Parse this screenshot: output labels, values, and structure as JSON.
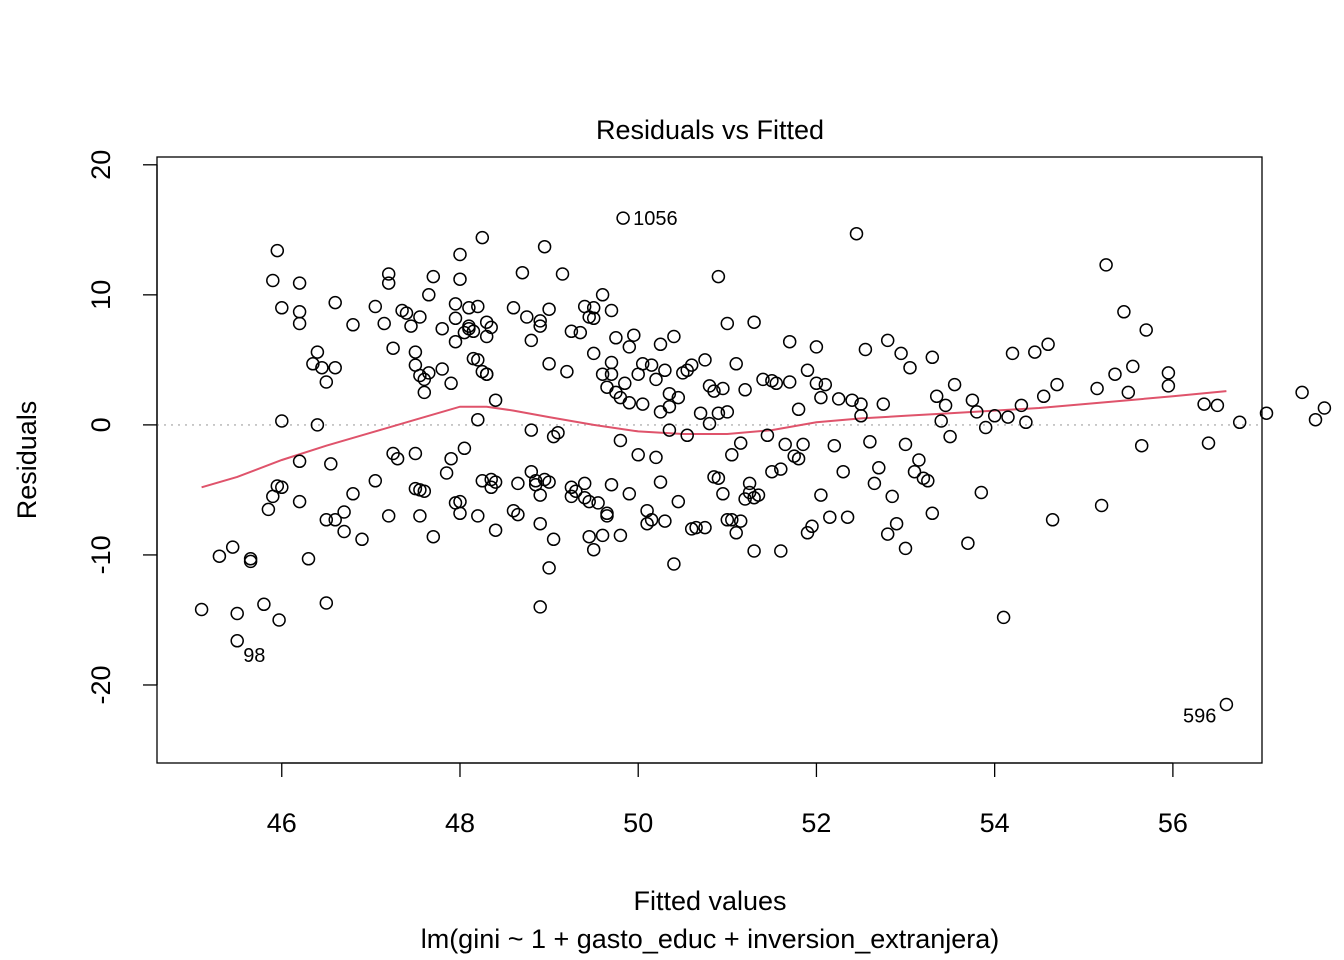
{
  "chart_data": {
    "type": "scatter",
    "title": "Residuals vs Fitted",
    "xlabel": "Fitted values",
    "subtitle": "lm(gini ~ 1 + gasto_educ + inversion_extranjera)",
    "ylabel": "Residuals",
    "xlim": [
      44.6,
      57.0
    ],
    "ylim": [
      -26.0,
      20.6
    ],
    "x_ticks": [
      46,
      48,
      50,
      52,
      54,
      56
    ],
    "y_ticks": [
      -20,
      -10,
      0,
      10,
      20
    ],
    "x_tick_labels": [
      "46",
      "48",
      "50",
      "52",
      "54",
      "56"
    ],
    "y_tick_labels": [
      "-20",
      "-10",
      "0",
      "10",
      "20"
    ],
    "reference_line": {
      "y": 0,
      "style": "dotted",
      "color": "#bebebe"
    },
    "smooth_color": "#df536b",
    "point_color": "#000000",
    "labeled_points": [
      {
        "label": "1056",
        "x": 49.83,
        "y": 15.9,
        "side": "right"
      },
      {
        "label": "98",
        "x": 45.5,
        "y": -16.6,
        "side": "below-right"
      },
      {
        "label": "596",
        "x": 56.6,
        "y": -21.5,
        "side": "left"
      }
    ],
    "smooth": [
      [
        45.1,
        -4.8
      ],
      [
        45.5,
        -4.0
      ],
      [
        46.0,
        -2.7
      ],
      [
        46.5,
        -1.6
      ],
      [
        47.0,
        -0.6
      ],
      [
        47.5,
        0.4
      ],
      [
        48.0,
        1.4
      ],
      [
        48.3,
        1.4
      ],
      [
        48.6,
        1.1
      ],
      [
        49.0,
        0.6
      ],
      [
        49.5,
        0.0
      ],
      [
        50.0,
        -0.5
      ],
      [
        50.5,
        -0.7
      ],
      [
        51.0,
        -0.7
      ],
      [
        51.5,
        -0.4
      ],
      [
        52.0,
        0.2
      ],
      [
        52.5,
        0.5
      ],
      [
        53.0,
        0.7
      ],
      [
        53.5,
        0.9
      ],
      [
        54.0,
        1.1
      ],
      [
        54.5,
        1.3
      ],
      [
        55.0,
        1.6
      ],
      [
        55.5,
        1.9
      ],
      [
        56.0,
        2.2
      ],
      [
        56.6,
        2.6
      ]
    ],
    "points": [
      [
        45.1,
        -14.2
      ],
      [
        45.3,
        -10.1
      ],
      [
        45.45,
        -9.4
      ],
      [
        45.5,
        -14.5
      ],
      [
        45.65,
        -10.5
      ],
      [
        45.65,
        -10.3
      ],
      [
        45.8,
        -13.8
      ],
      [
        45.85,
        -6.5
      ],
      [
        45.9,
        -5.5
      ],
      [
        45.9,
        11.1
      ],
      [
        45.95,
        -4.7
      ],
      [
        45.95,
        13.4
      ],
      [
        45.97,
        -15.0
      ],
      [
        46.0,
        0.3
      ],
      [
        46.0,
        -4.8
      ],
      [
        46.0,
        9.0
      ],
      [
        46.2,
        10.9
      ],
      [
        46.2,
        8.7
      ],
      [
        46.2,
        7.8
      ],
      [
        46.2,
        -5.9
      ],
      [
        46.2,
        -2.8
      ],
      [
        46.3,
        -10.3
      ],
      [
        46.35,
        4.7
      ],
      [
        46.4,
        5.6
      ],
      [
        46.4,
        0.0
      ],
      [
        46.45,
        4.4
      ],
      [
        46.5,
        3.3
      ],
      [
        46.5,
        -13.7
      ],
      [
        46.5,
        -7.3
      ],
      [
        46.55,
        -3.0
      ],
      [
        46.6,
        4.4
      ],
      [
        46.6,
        9.4
      ],
      [
        46.6,
        -7.3
      ],
      [
        46.7,
        -6.7
      ],
      [
        46.7,
        -8.2
      ],
      [
        46.8,
        7.7
      ],
      [
        46.8,
        -5.3
      ],
      [
        46.9,
        -8.8
      ],
      [
        47.05,
        9.1
      ],
      [
        47.05,
        -4.3
      ],
      [
        47.15,
        7.8
      ],
      [
        47.2,
        11.6
      ],
      [
        47.2,
        -7.0
      ],
      [
        47.2,
        10.9
      ],
      [
        47.25,
        5.9
      ],
      [
        47.25,
        -2.2
      ],
      [
        47.3,
        -2.6
      ],
      [
        47.35,
        8.8
      ],
      [
        47.4,
        8.6
      ],
      [
        47.45,
        7.6
      ],
      [
        47.5,
        5.6
      ],
      [
        47.5,
        4.6
      ],
      [
        47.5,
        -2.2
      ],
      [
        47.5,
        -4.9
      ],
      [
        47.55,
        -5.0
      ],
      [
        47.55,
        8.3
      ],
      [
        47.55,
        -7.0
      ],
      [
        47.55,
        3.8
      ],
      [
        47.6,
        3.5
      ],
      [
        47.6,
        -5.1
      ],
      [
        47.6,
        2.5
      ],
      [
        47.65,
        10.0
      ],
      [
        47.65,
        4.0
      ],
      [
        47.7,
        -8.6
      ],
      [
        47.7,
        11.4
      ],
      [
        47.8,
        7.4
      ],
      [
        47.8,
        4.3
      ],
      [
        47.85,
        -3.7
      ],
      [
        47.9,
        -2.6
      ],
      [
        47.9,
        3.2
      ],
      [
        47.95,
        6.4
      ],
      [
        47.95,
        8.2
      ],
      [
        47.95,
        9.3
      ],
      [
        47.95,
        -6.0
      ],
      [
        48.0,
        -6.8
      ],
      [
        48.0,
        11.2
      ],
      [
        48.0,
        13.1
      ],
      [
        48.0,
        -5.9
      ],
      [
        48.05,
        -1.8
      ],
      [
        48.05,
        7.1
      ],
      [
        48.1,
        7.4
      ],
      [
        48.1,
        9.0
      ],
      [
        48.1,
        7.6
      ],
      [
        48.15,
        5.1
      ],
      [
        48.15,
        7.2
      ],
      [
        48.2,
        5.0
      ],
      [
        48.2,
        9.1
      ],
      [
        48.2,
        0.4
      ],
      [
        48.2,
        -7.0
      ],
      [
        48.25,
        4.1
      ],
      [
        48.25,
        -4.3
      ],
      [
        48.25,
        14.4
      ],
      [
        48.3,
        3.9
      ],
      [
        48.3,
        6.8
      ],
      [
        48.3,
        7.9
      ],
      [
        48.3,
        3.9
      ],
      [
        48.35,
        -4.2
      ],
      [
        48.35,
        -4.8
      ],
      [
        48.35,
        7.5
      ],
      [
        48.4,
        1.9
      ],
      [
        48.4,
        -8.1
      ],
      [
        48.4,
        -4.4
      ],
      [
        48.6,
        9.0
      ],
      [
        48.6,
        -6.6
      ],
      [
        48.65,
        -6.9
      ],
      [
        48.65,
        -4.5
      ],
      [
        48.7,
        11.7
      ],
      [
        48.75,
        8.3
      ],
      [
        48.8,
        -3.6
      ],
      [
        48.8,
        -0.4
      ],
      [
        48.8,
        6.5
      ],
      [
        48.85,
        -4.3
      ],
      [
        48.85,
        -4.6
      ],
      [
        48.9,
        -5.4
      ],
      [
        48.9,
        -14.0
      ],
      [
        48.9,
        7.6
      ],
      [
        48.9,
        -7.6
      ],
      [
        48.9,
        8.0
      ],
      [
        48.95,
        -4.2
      ],
      [
        48.95,
        13.7
      ],
      [
        49.0,
        -11.0
      ],
      [
        49.0,
        4.7
      ],
      [
        49.0,
        8.9
      ],
      [
        49.0,
        -4.4
      ],
      [
        49.05,
        -0.9
      ],
      [
        49.05,
        -8.8
      ],
      [
        49.1,
        -0.6
      ],
      [
        49.15,
        11.6
      ],
      [
        49.2,
        4.1
      ],
      [
        49.25,
        -4.8
      ],
      [
        49.25,
        -5.5
      ],
      [
        49.25,
        7.2
      ],
      [
        49.3,
        -5.1
      ],
      [
        49.35,
        7.1
      ],
      [
        49.4,
        -4.5
      ],
      [
        49.4,
        -5.6
      ],
      [
        49.4,
        9.1
      ],
      [
        49.45,
        8.3
      ],
      [
        49.45,
        -5.9
      ],
      [
        49.45,
        -8.6
      ],
      [
        49.5,
        -9.6
      ],
      [
        49.5,
        8.2
      ],
      [
        49.5,
        5.5
      ],
      [
        49.5,
        9.0
      ],
      [
        49.55,
        -6.0
      ],
      [
        49.6,
        10.0
      ],
      [
        49.6,
        -8.5
      ],
      [
        49.6,
        3.9
      ],
      [
        49.65,
        -6.8
      ],
      [
        49.65,
        -7.0
      ],
      [
        49.65,
        2.9
      ],
      [
        49.7,
        3.9
      ],
      [
        49.7,
        -4.6
      ],
      [
        49.7,
        4.8
      ],
      [
        49.7,
        8.8
      ],
      [
        49.75,
        6.7
      ],
      [
        49.75,
        2.5
      ],
      [
        49.8,
        -1.2
      ],
      [
        49.8,
        2.1
      ],
      [
        49.8,
        -8.5
      ],
      [
        49.85,
        3.2
      ],
      [
        49.9,
        -5.3
      ],
      [
        49.9,
        1.7
      ],
      [
        49.9,
        6.0
      ],
      [
        49.95,
        6.9
      ],
      [
        50.0,
        3.9
      ],
      [
        50.0,
        -2.3
      ],
      [
        50.05,
        4.7
      ],
      [
        50.05,
        1.6
      ],
      [
        50.1,
        -7.6
      ],
      [
        50.1,
        -6.6
      ],
      [
        50.15,
        4.6
      ],
      [
        50.15,
        -7.3
      ],
      [
        50.2,
        -2.5
      ],
      [
        50.2,
        3.5
      ],
      [
        50.25,
        1.0
      ],
      [
        50.25,
        6.2
      ],
      [
        50.25,
        -4.4
      ],
      [
        50.3,
        4.2
      ],
      [
        50.3,
        -7.4
      ],
      [
        50.35,
        -0.4
      ],
      [
        50.35,
        1.4
      ],
      [
        50.35,
        2.4
      ],
      [
        50.4,
        6.8
      ],
      [
        50.4,
        -10.7
      ],
      [
        50.45,
        2.1
      ],
      [
        50.45,
        -5.9
      ],
      [
        50.5,
        4.0
      ],
      [
        50.55,
        -0.8
      ],
      [
        50.55,
        4.2
      ],
      [
        50.6,
        4.6
      ],
      [
        50.6,
        -8.0
      ],
      [
        50.65,
        -7.9
      ],
      [
        50.7,
        0.9
      ],
      [
        50.75,
        5.0
      ],
      [
        50.75,
        -7.9
      ],
      [
        50.8,
        3.0
      ],
      [
        50.8,
        0.1
      ],
      [
        50.85,
        -4.0
      ],
      [
        50.85,
        2.6
      ],
      [
        50.9,
        11.4
      ],
      [
        50.9,
        -4.1
      ],
      [
        50.9,
        0.9
      ],
      [
        50.95,
        -5.3
      ],
      [
        50.95,
        2.8
      ],
      [
        51.0,
        1.0
      ],
      [
        51.0,
        7.8
      ],
      [
        51.0,
        -7.3
      ],
      [
        51.05,
        -2.3
      ],
      [
        51.05,
        -7.3
      ],
      [
        51.1,
        -8.3
      ],
      [
        51.1,
        4.7
      ],
      [
        51.15,
        -7.4
      ],
      [
        51.15,
        -1.4
      ],
      [
        51.2,
        -5.7
      ],
      [
        51.2,
        2.7
      ],
      [
        51.25,
        -5.2
      ],
      [
        51.25,
        -4.5
      ],
      [
        51.3,
        7.9
      ],
      [
        51.3,
        -9.7
      ],
      [
        51.3,
        -5.6
      ],
      [
        51.35,
        -5.4
      ],
      [
        51.4,
        3.5
      ],
      [
        51.45,
        -0.8
      ],
      [
        51.5,
        3.4
      ],
      [
        51.5,
        -3.6
      ],
      [
        51.55,
        3.2
      ],
      [
        51.6,
        -9.7
      ],
      [
        51.6,
        -3.4
      ],
      [
        51.65,
        -1.5
      ],
      [
        51.7,
        6.4
      ],
      [
        51.7,
        3.3
      ],
      [
        51.75,
        -2.4
      ],
      [
        51.8,
        1.2
      ],
      [
        51.8,
        -2.6
      ],
      [
        51.85,
        -1.5
      ],
      [
        51.9,
        4.2
      ],
      [
        51.9,
        -8.3
      ],
      [
        51.95,
        -7.8
      ],
      [
        52.0,
        6.0
      ],
      [
        52.0,
        3.2
      ],
      [
        52.05,
        -5.4
      ],
      [
        52.05,
        2.1
      ],
      [
        52.1,
        3.1
      ],
      [
        52.15,
        -7.1
      ],
      [
        52.2,
        -1.6
      ],
      [
        52.25,
        2.0
      ],
      [
        52.3,
        -3.6
      ],
      [
        52.35,
        -7.1
      ],
      [
        52.4,
        1.9
      ],
      [
        52.45,
        14.7
      ],
      [
        52.5,
        0.7
      ],
      [
        52.5,
        1.6
      ],
      [
        52.55,
        5.8
      ],
      [
        52.6,
        -1.3
      ],
      [
        52.65,
        -4.5
      ],
      [
        52.7,
        -3.3
      ],
      [
        52.75,
        1.6
      ],
      [
        52.8,
        -8.4
      ],
      [
        52.8,
        6.5
      ],
      [
        52.85,
        -5.5
      ],
      [
        52.9,
        -7.6
      ],
      [
        52.95,
        5.5
      ],
      [
        53.0,
        -9.5
      ],
      [
        53.0,
        -1.5
      ],
      [
        53.05,
        4.4
      ],
      [
        53.1,
        -3.6
      ],
      [
        53.15,
        -2.7
      ],
      [
        53.2,
        -4.1
      ],
      [
        53.25,
        -4.3
      ],
      [
        53.3,
        -6.8
      ],
      [
        53.3,
        5.2
      ],
      [
        53.35,
        2.2
      ],
      [
        53.4,
        0.3
      ],
      [
        53.45,
        1.5
      ],
      [
        53.5,
        -0.9
      ],
      [
        53.55,
        3.1
      ],
      [
        53.7,
        -9.1
      ],
      [
        53.75,
        1.9
      ],
      [
        53.8,
        1.0
      ],
      [
        53.85,
        -5.2
      ],
      [
        53.9,
        -0.2
      ],
      [
        54.0,
        0.7
      ],
      [
        54.1,
        -14.8
      ],
      [
        54.15,
        0.6
      ],
      [
        54.2,
        5.5
      ],
      [
        54.3,
        1.5
      ],
      [
        54.35,
        0.2
      ],
      [
        54.45,
        5.6
      ],
      [
        54.55,
        2.2
      ],
      [
        54.6,
        6.2
      ],
      [
        54.65,
        -7.3
      ],
      [
        54.7,
        3.1
      ],
      [
        55.15,
        2.8
      ],
      [
        55.2,
        -6.2
      ],
      [
        55.25,
        12.3
      ],
      [
        55.35,
        3.9
      ],
      [
        55.45,
        8.7
      ],
      [
        55.5,
        2.5
      ],
      [
        55.55,
        4.5
      ],
      [
        55.65,
        -1.6
      ],
      [
        55.7,
        7.3
      ],
      [
        55.95,
        3.0
      ],
      [
        55.95,
        4.0
      ],
      [
        56.35,
        1.6
      ],
      [
        56.4,
        -1.4
      ],
      [
        56.5,
        1.5
      ],
      [
        56.75,
        0.2
      ],
      [
        57.05,
        0.9
      ],
      [
        57.45,
        2.5
      ],
      [
        57.6,
        0.4
      ],
      [
        57.7,
        1.3
      ]
    ]
  }
}
